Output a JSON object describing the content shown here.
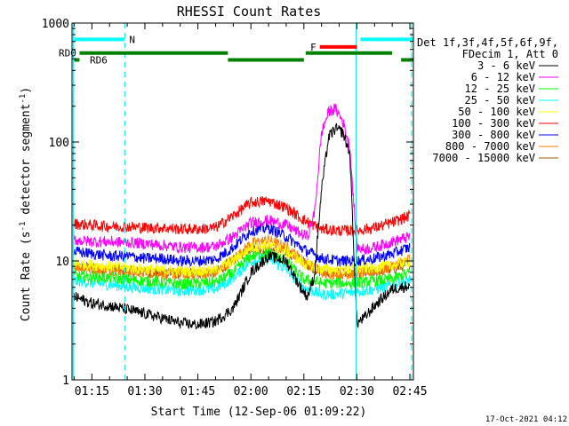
{
  "chart_data": {
    "type": "line",
    "title": "RHESSI Count Rates",
    "xlabel": "Start Time (12-Sep-06 01:09:22)",
    "ylabel_main": "Count Rate (s",
    "ylabel_sup": "-1",
    "ylabel_mid": " detector segment",
    "ylabel_end": ")",
    "x_range_minutes": [
      69.37,
      166.0
    ],
    "ylim": [
      1,
      1000
    ],
    "y_scale": "log",
    "x_ticks": [
      {
        "m": 75,
        "label": "01:15"
      },
      {
        "m": 90,
        "label": "01:30"
      },
      {
        "m": 105,
        "label": "01:45"
      },
      {
        "m": 120,
        "label": "02:00"
      },
      {
        "m": 135,
        "label": "02:15"
      },
      {
        "m": 150,
        "label": "02:30"
      },
      {
        "m": 165,
        "label": "02:45"
      }
    ],
    "y_ticks": [
      {
        "v": 1,
        "label": "1"
      },
      {
        "v": 10,
        "label": "10"
      },
      {
        "v": 100,
        "label": "100"
      },
      {
        "v": 1000,
        "label": "1000"
      }
    ],
    "legend_header": [
      "Det 1f,3f,4f,5f,6f,9f,",
      "FDecim 1, Att 0"
    ],
    "series": [
      {
        "name": "3 - 6 keV",
        "color": "#000000",
        "x": [
          70,
          75,
          80,
          85,
          90,
          95,
          100,
          105,
          110,
          115,
          120,
          125,
          130,
          134,
          136,
          138,
          140,
          142,
          144,
          146,
          148,
          150,
          152,
          155,
          160,
          165
        ],
        "values": [
          5.0,
          4.4,
          4.2,
          3.9,
          3.6,
          3.3,
          3.0,
          2.9,
          3.1,
          4.0,
          8.0,
          11.0,
          10.0,
          6.0,
          5.0,
          7.5,
          40,
          110,
          130,
          120,
          80,
          3.0,
          3.3,
          4.2,
          5.8,
          6.2
        ]
      },
      {
        "name": "6 - 12 keV",
        "color": "#ff00ff",
        "x": [
          70,
          75,
          80,
          85,
          90,
          95,
          100,
          105,
          110,
          115,
          120,
          125,
          130,
          134,
          136,
          138,
          140,
          142,
          144,
          146,
          148,
          150,
          152,
          155,
          160,
          165
        ],
        "values": [
          15,
          14.5,
          14.5,
          14.3,
          14.0,
          13.5,
          13.0,
          13.0,
          13.2,
          16.0,
          21.0,
          22.0,
          20.0,
          17.0,
          16.0,
          25,
          120,
          180,
          190,
          150,
          90,
          13.0,
          12.5,
          13.0,
          14.5,
          16.0
        ]
      },
      {
        "name": "12 - 25 keV",
        "color": "#00ff00",
        "x": [
          70,
          80,
          90,
          100,
          110,
          115,
          120,
          125,
          130,
          135,
          140,
          145,
          150,
          155,
          160,
          165
        ],
        "values": [
          7.5,
          7.2,
          6.8,
          6.4,
          6.6,
          8.0,
          11.0,
          11.5,
          10.0,
          7.0,
          6.5,
          6.5,
          6.5,
          6.8,
          7.0,
          8.0
        ]
      },
      {
        "name": "25 - 50 keV",
        "color": "#00ffff",
        "x": [
          70,
          80,
          90,
          100,
          110,
          115,
          120,
          125,
          130,
          135,
          140,
          145,
          150,
          155,
          160,
          165
        ],
        "values": [
          6.8,
          6.3,
          5.9,
          5.6,
          5.8,
          7.2,
          10.0,
          10.5,
          8.5,
          6.0,
          5.2,
          5.3,
          5.5,
          5.8,
          6.2,
          7.0
        ]
      },
      {
        "name": "50 - 100 keV",
        "color": "#ffff00",
        "x": [
          70,
          80,
          90,
          100,
          110,
          115,
          120,
          125,
          130,
          135,
          140,
          145,
          150,
          155,
          160,
          165
        ],
        "values": [
          9.5,
          9.0,
          8.5,
          8.2,
          8.4,
          10.0,
          13.0,
          13.5,
          12.0,
          9.5,
          8.5,
          8.4,
          8.5,
          8.8,
          9.2,
          10.0
        ]
      },
      {
        "name": "100 - 300 keV",
        "color": "#ff0000",
        "x": [
          70,
          75,
          80,
          85,
          90,
          95,
          100,
          105,
          110,
          115,
          120,
          125,
          130,
          135,
          140,
          145,
          150,
          155,
          160,
          165
        ],
        "values": [
          20.5,
          20.0,
          19.5,
          19.5,
          19.0,
          19.0,
          18.5,
          18.5,
          19.0,
          24.0,
          31.0,
          32.0,
          28.0,
          22.0,
          18.5,
          18.0,
          18.0,
          19.0,
          21.0,
          24.0
        ]
      },
      {
        "name": "300 - 800 keV",
        "color": "#0000ff",
        "x": [
          70,
          75,
          80,
          85,
          90,
          95,
          100,
          105,
          110,
          115,
          120,
          125,
          130,
          135,
          140,
          145,
          150,
          155,
          160,
          165
        ],
        "values": [
          12.0,
          11.5,
          11.0,
          11.0,
          10.5,
          10.5,
          10.0,
          10.0,
          10.3,
          13.0,
          18.0,
          19.0,
          16.0,
          12.5,
          10.5,
          10.0,
          10.0,
          10.5,
          11.5,
          13.0
        ]
      },
      {
        "name": "800 - 7000 keV",
        "color": "#ff8000",
        "x": [
          70,
          75,
          80,
          85,
          90,
          95,
          100,
          105,
          110,
          115,
          120,
          125,
          130,
          135,
          140,
          145,
          150,
          155,
          160,
          165
        ],
        "values": [
          9.0,
          8.6,
          8.4,
          8.2,
          8.0,
          7.9,
          7.7,
          7.7,
          8.0,
          10.2,
          14.0,
          15.0,
          13.0,
          10.0,
          8.0,
          7.8,
          7.8,
          8.2,
          9.0,
          10.5
        ]
      },
      {
        "name": "7000 - 15000 keV",
        "color": "#a05a00",
        "x": [
          70,
          80,
          90,
          100,
          110,
          120,
          130,
          140,
          150,
          160,
          165
        ],
        "values": [
          9.0,
          8.5,
          8.0,
          7.8,
          8.0,
          13.0,
          12.0,
          8.0,
          7.8,
          8.5,
          9.5
        ]
      }
    ],
    "bars": [
      {
        "color": "#00ffff",
        "segments": [
          [
            70,
            84.3
          ],
          [
            151.0,
            166
          ]
        ],
        "y": 730,
        "label": "N"
      },
      {
        "color": "#ff0000",
        "segments": [
          [
            139.5,
            150.0
          ]
        ],
        "y": 630,
        "label": "F"
      },
      {
        "color": "#008000",
        "segments": [
          [
            71.5,
            113.5
          ],
          [
            135.5,
            160.0
          ]
        ],
        "y": 560,
        "label": "RD0"
      },
      {
        "color": "#008000",
        "segments": [
          [
            70,
            71.5
          ],
          [
            113.5,
            135.0
          ],
          [
            162.5,
            166
          ]
        ],
        "y": 490,
        "label": "RD6"
      }
    ],
    "vlines_solid": [
      69.8,
      149.8
    ],
    "vlines_dashed": [
      84.3,
      165.5
    ],
    "timestamp": "17-Oct-2021 04:12"
  }
}
